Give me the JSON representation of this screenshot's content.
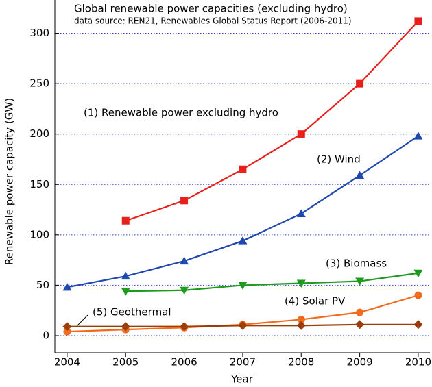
{
  "chart_data": {
    "type": "line",
    "title": "Global renewable power capacities (excluding hydro)",
    "subtitle": "data source: REN21, Renewables Global Status Report (2006-2011)",
    "x_label": "Year",
    "y_label": "Renewable power capacity (GW)",
    "x": [
      2004,
      2005,
      2006,
      2007,
      2008,
      2009,
      2010
    ],
    "xlim": [
      2003.79,
      2010.2
    ],
    "xticks": [
      2004,
      2005,
      2006,
      2007,
      2008,
      2009,
      2010
    ],
    "ylim": [
      -17,
      333
    ],
    "yticks": [
      0,
      50,
      100,
      150,
      200,
      250,
      300
    ],
    "grid": true,
    "series": [
      {
        "name": "(1) Renewable power excluding hydro",
        "color": "#e8201c",
        "marker": "square",
        "values": [
          null,
          114,
          134,
          165,
          200,
          250,
          312
        ]
      },
      {
        "name": "(2) Wind",
        "color": "#1f48b0",
        "marker": "triangle-up",
        "values": [
          48,
          59,
          74,
          94,
          121,
          159,
          198
        ]
      },
      {
        "name": "(3) Biomass",
        "color": "#1e9a1e",
        "marker": "triangle-down",
        "values": [
          null,
          44,
          45,
          50,
          52,
          54,
          62
        ]
      },
      {
        "name": "(4) Solar PV",
        "color": "#f26a1b",
        "marker": "circle",
        "values": [
          4,
          6,
          8,
          11,
          16,
          23,
          40
        ]
      },
      {
        "name": "(5) Geothermal",
        "color": "#9a3d0a",
        "marker": "diamond",
        "values": [
          9,
          9,
          9,
          10,
          10,
          11,
          11
        ]
      }
    ]
  }
}
